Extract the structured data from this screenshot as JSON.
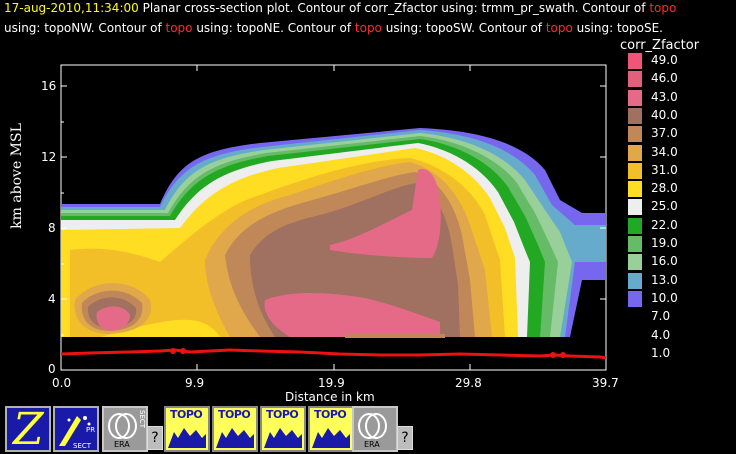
{
  "header": {
    "timestamp": "17-aug-2010,11:34:00",
    "line1_a": "  Planar cross-section plot.  Contour of corr_Zfactor using: trmm_pr_swath.  Contour of ",
    "topo": "topo",
    "line2_a": "using: topoNW.  Contour of ",
    "line2_b": " using: topoNE.  Contour of ",
    "line2_c": " using: topoSW.  Contour of ",
    "line2_d": " using: topoSE."
  },
  "axes": {
    "ylabel": "km above MSL",
    "xlabel": "Distance in km",
    "yticks": [
      "16",
      "12",
      "8",
      "4",
      "0"
    ],
    "xticks": [
      "0.0",
      "9.9",
      "19.9",
      "29.8",
      "39.7"
    ]
  },
  "colorbar": {
    "title": "corr_Zfactor",
    "levels": [
      {
        "label": "49.0",
        "color": "#ee5577"
      },
      {
        "label": "46.0",
        "color": "#e2607a"
      },
      {
        "label": "43.0",
        "color": "#e46a88"
      },
      {
        "label": "40.0",
        "color": "#a07060"
      },
      {
        "label": "37.0",
        "color": "#c08858"
      },
      {
        "label": "34.0",
        "color": "#e0a84a"
      },
      {
        "label": "31.0",
        "color": "#f2bf28"
      },
      {
        "label": "28.0",
        "color": "#ffdd22"
      },
      {
        "label": "25.0",
        "color": "#eeeeee"
      },
      {
        "label": "22.0",
        "color": "#22a822"
      },
      {
        "label": "19.0",
        "color": "#66bb66"
      },
      {
        "label": "16.0",
        "color": "#99d099"
      },
      {
        "label": "13.0",
        "color": "#66aacc"
      },
      {
        "label": "10.0",
        "color": "#7766ee"
      },
      {
        "label": "7.0",
        "color": ""
      },
      {
        "label": "4.0",
        "color": ""
      },
      {
        "label": "1.0",
        "color": ""
      }
    ]
  },
  "toolbar": {
    "topo_label": "TOPO",
    "sect_label": "SECT",
    "era_label": "ERA",
    "pr_label": "PR",
    "help_label": "?"
  }
}
